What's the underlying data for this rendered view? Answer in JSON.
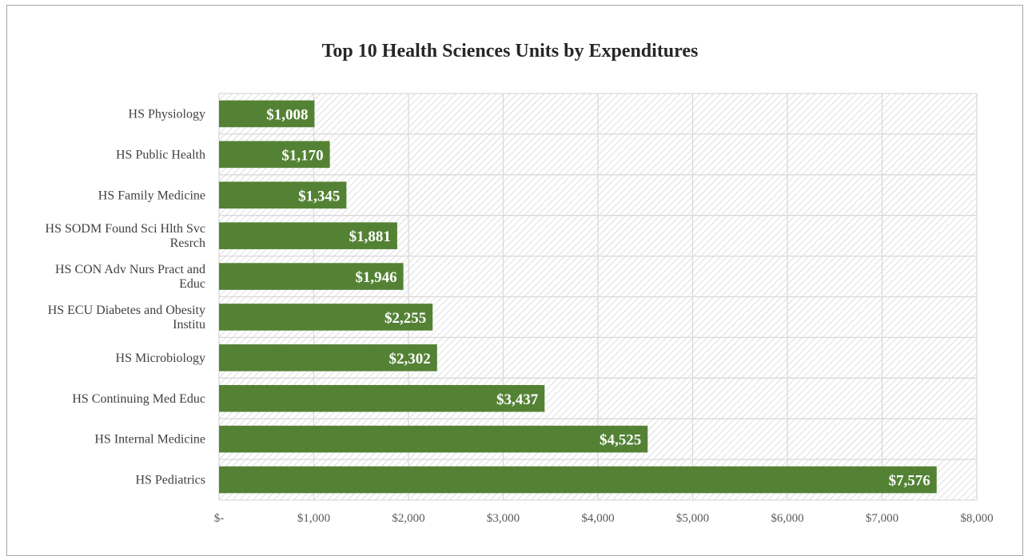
{
  "chart_data": {
    "type": "bar",
    "orientation": "horizontal",
    "title": "Top 10 Health Sciences Units by Expenditures",
    "categories": [
      [
        "HS Physiology"
      ],
      [
        "HS Public Health"
      ],
      [
        "HS Family Medicine"
      ],
      [
        "HS SODM Found Sci Hlth Svc",
        "Resrch"
      ],
      [
        "HS CON Adv Nurs Pract and",
        "Educ"
      ],
      [
        "HS ECU Diabetes and Obesity",
        "Institu"
      ],
      [
        "HS Microbiology"
      ],
      [
        "HS Continuing Med Educ"
      ],
      [
        "HS Internal Medicine"
      ],
      [
        "HS Pediatrics"
      ]
    ],
    "values": [
      1008,
      1170,
      1345,
      1881,
      1946,
      2255,
      2302,
      3437,
      4525,
      7576
    ],
    "data_labels": [
      "$1,008",
      "$1,170",
      "$1,345",
      "$1,881",
      "$1,946",
      "$2,255",
      "$2,302",
      "$3,437",
      "$4,525",
      "$7,576"
    ],
    "xlim": [
      0,
      8000
    ],
    "x_ticks": [
      0,
      1000,
      2000,
      3000,
      4000,
      5000,
      6000,
      7000,
      8000
    ],
    "x_tick_labels": [
      "$-",
      "$1,000",
      "$2,000",
      "$3,000",
      "$4,000",
      "$5,000",
      "$6,000",
      "$7,000",
      "$8,000"
    ],
    "grid": true,
    "plot_background": "diagonal-hatch",
    "legend": "none",
    "colors": {
      "bar": "#548235",
      "data_label": "#ffffff",
      "grid": "#d9d9d9",
      "hatch": "#c8c8c8",
      "title": "#262626",
      "text": "#404040"
    }
  }
}
